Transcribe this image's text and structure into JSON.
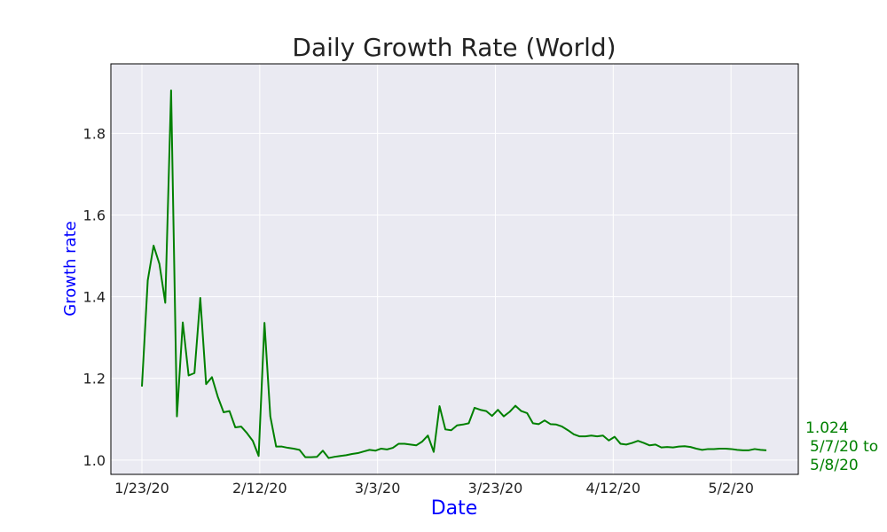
{
  "chart_data": {
    "type": "line",
    "title": "Daily Growth Rate (World)",
    "xlabel": "Date",
    "ylabel": "Growth rate",
    "x_tick_labels": [
      "1/23/20",
      "2/12/20",
      "3/3/20",
      "3/23/20",
      "4/12/20",
      "5/2/20"
    ],
    "x_start": "1/23/20",
    "x_end": "5/8/20",
    "ylim": [
      0.965,
      1.97
    ],
    "y_ticks": [
      1.0,
      1.2,
      1.4,
      1.6,
      1.8
    ],
    "y_tick_labels": [
      "1.0",
      "1.2",
      "1.4",
      "1.6",
      "1.8"
    ],
    "grid": true,
    "series": [
      {
        "color": "#008000",
        "values": [
          1.18,
          1.44,
          1.525,
          1.48,
          1.385,
          1.905,
          1.107,
          1.337,
          1.207,
          1.213,
          1.397,
          1.186,
          1.203,
          1.155,
          1.117,
          1.12,
          1.08,
          1.082,
          1.066,
          1.047,
          1.01,
          1.336,
          1.107,
          1.033,
          1.033,
          1.03,
          1.028,
          1.025,
          1.007,
          1.007,
          1.008,
          1.023,
          1.005,
          1.008,
          1.01,
          1.012,
          1.015,
          1.017,
          1.021,
          1.025,
          1.023,
          1.028,
          1.026,
          1.03,
          1.04,
          1.04,
          1.038,
          1.036,
          1.045,
          1.06,
          1.02,
          1.132,
          1.075,
          1.073,
          1.085,
          1.087,
          1.09,
          1.128,
          1.123,
          1.12,
          1.108,
          1.123,
          1.107,
          1.118,
          1.133,
          1.12,
          1.115,
          1.09,
          1.088,
          1.097,
          1.088,
          1.087,
          1.082,
          1.073,
          1.063,
          1.058,
          1.058,
          1.06,
          1.058,
          1.06,
          1.048,
          1.057,
          1.04,
          1.038,
          1.042,
          1.047,
          1.042,
          1.036,
          1.038,
          1.031,
          1.032,
          1.031,
          1.033,
          1.034,
          1.032,
          1.028,
          1.025,
          1.027,
          1.027,
          1.028,
          1.028,
          1.027,
          1.025,
          1.024,
          1.024,
          1.027,
          1.025,
          1.024
        ]
      }
    ],
    "annotation": {
      "value": "1.024",
      "date_range": [
        "5/7/20 to",
        "5/8/20"
      ],
      "color": "#008000"
    }
  },
  "colors": {
    "plot_background": "#eaeaf2",
    "grid": "#ffffff",
    "axis_label": "#0000ff",
    "line": "#008000",
    "text": "#222222"
  }
}
